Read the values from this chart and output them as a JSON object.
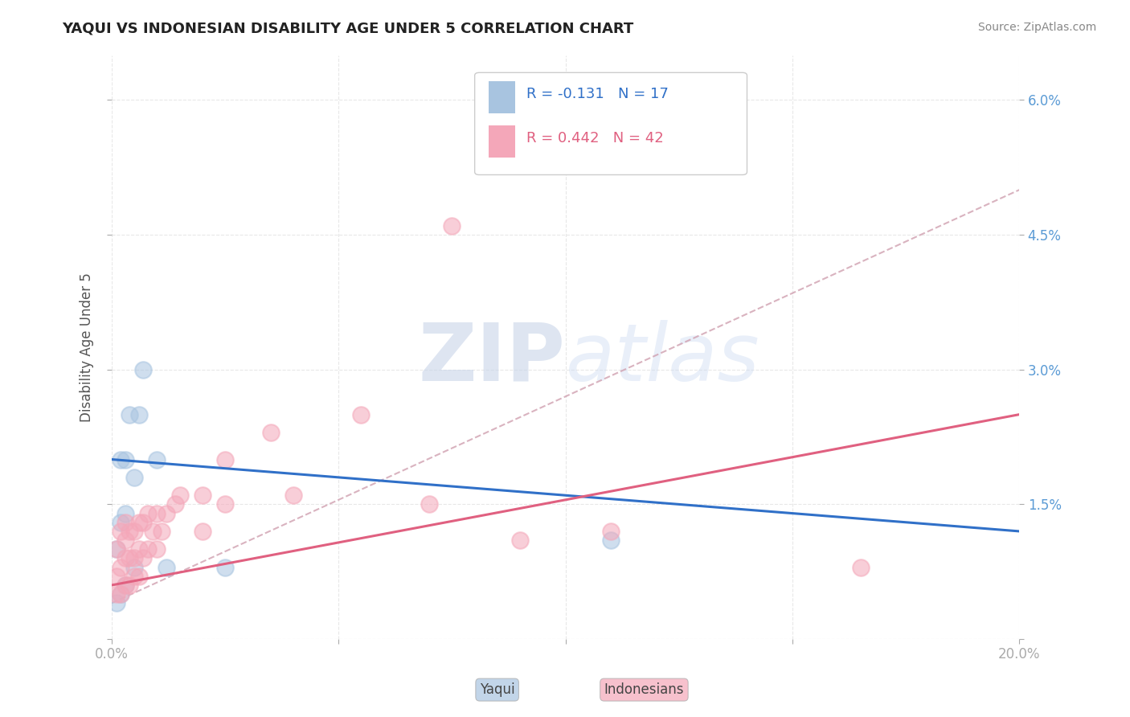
{
  "title": "YAQUI VS INDONESIAN DISABILITY AGE UNDER 5 CORRELATION CHART",
  "source": "Source: ZipAtlas.com",
  "ylabel": "Disability Age Under 5",
  "xlim": [
    0.0,
    0.2
  ],
  "ylim": [
    0.0,
    0.065
  ],
  "xticks": [
    0.0,
    0.05,
    0.1,
    0.15,
    0.2
  ],
  "xticklabels": [
    "0.0%",
    "",
    "",
    "",
    "20.0%"
  ],
  "yticks": [
    0.0,
    0.015,
    0.03,
    0.045,
    0.06
  ],
  "yticklabels_right": [
    "",
    "1.5%",
    "3.0%",
    "4.5%",
    "6.0%"
  ],
  "legend_text1": "R = -0.131   N = 17",
  "legend_text2": "R = 0.442   N = 42",
  "yaqui_color": "#a8c4e0",
  "indonesian_color": "#f4a7b9",
  "yaqui_line_color": "#3070c8",
  "indonesian_line_color": "#e06080",
  "overall_line_color": "#d0a0b0",
  "watermark_zip": "ZIP",
  "watermark_atlas": "atlas",
  "background_color": "#ffffff",
  "grid_color": "#e8e8e8",
  "tick_color": "#aaaaaa",
  "title_color": "#222222",
  "source_color": "#888888",
  "legend_r_color": "#3070c8",
  "legend_n_color": "#3070c8",
  "bottom_legend_yaqui": "Yaqui",
  "bottom_legend_indonesian": "Indonesians",
  "yaqui_x": [
    0.001,
    0.001,
    0.002,
    0.002,
    0.002,
    0.003,
    0.003,
    0.003,
    0.004,
    0.005,
    0.005,
    0.006,
    0.007,
    0.01,
    0.012,
    0.025,
    0.11
  ],
  "yaqui_y": [
    0.004,
    0.01,
    0.005,
    0.013,
    0.02,
    0.006,
    0.014,
    0.02,
    0.025,
    0.008,
    0.018,
    0.025,
    0.03,
    0.02,
    0.008,
    0.008,
    0.011
  ],
  "indonesian_x": [
    0.001,
    0.001,
    0.001,
    0.002,
    0.002,
    0.002,
    0.003,
    0.003,
    0.003,
    0.003,
    0.004,
    0.004,
    0.004,
    0.005,
    0.005,
    0.005,
    0.006,
    0.006,
    0.006,
    0.007,
    0.007,
    0.008,
    0.008,
    0.009,
    0.01,
    0.01,
    0.011,
    0.012,
    0.014,
    0.015,
    0.02,
    0.02,
    0.025,
    0.025,
    0.035,
    0.04,
    0.055,
    0.07,
    0.075,
    0.09,
    0.11,
    0.165
  ],
  "indonesian_y": [
    0.005,
    0.007,
    0.01,
    0.005,
    0.008,
    0.012,
    0.006,
    0.009,
    0.011,
    0.013,
    0.006,
    0.009,
    0.012,
    0.007,
    0.009,
    0.012,
    0.007,
    0.01,
    0.013,
    0.009,
    0.013,
    0.01,
    0.014,
    0.012,
    0.01,
    0.014,
    0.012,
    0.014,
    0.015,
    0.016,
    0.012,
    0.016,
    0.015,
    0.02,
    0.023,
    0.016,
    0.025,
    0.015,
    0.046,
    0.011,
    0.012,
    0.008
  ],
  "yaqui_trend": [
    0.02,
    0.012
  ],
  "indonesian_trend": [
    0.006,
    0.025
  ],
  "overall_trend": [
    0.004,
    0.05
  ]
}
